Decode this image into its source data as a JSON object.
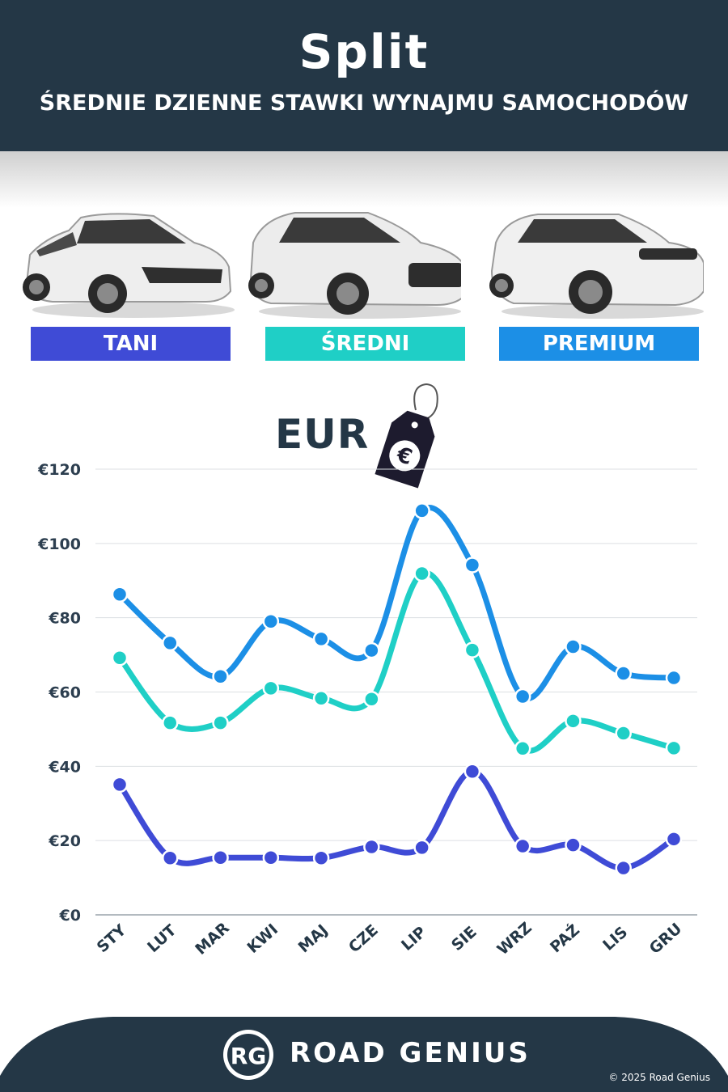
{
  "header": {
    "title": "Split",
    "subtitle": "ŚREDNIE DZIENNE STAWKI WYNAJMU SAMOCHODÓW"
  },
  "categories": [
    {
      "label": "TANI",
      "color": "#3f4bd6"
    },
    {
      "label": "ŚREDNI",
      "color": "#1fcfc6"
    },
    {
      "label": "PREMIUM",
      "color": "#1c8fe6"
    }
  ],
  "currency_label": "EUR",
  "tag_symbol": "€",
  "chart_data": {
    "type": "line",
    "categories": [
      "STY",
      "LUT",
      "MAR",
      "KWI",
      "MAJ",
      "CZE",
      "LIP",
      "SIE",
      "WRZ",
      "PAŹ",
      "LIS",
      "GRU"
    ],
    "series": [
      {
        "name": "PREMIUM",
        "color": "#1c8fe6",
        "values": [
          86.3,
          73.2,
          64.2,
          79.0,
          74.3,
          71.2,
          108.8,
          94.2,
          58.8,
          72.2,
          65.0,
          63.8
        ]
      },
      {
        "name": "ŚREDNI",
        "color": "#1fcfc6",
        "values": [
          69.2,
          51.7,
          51.7,
          61.0,
          58.3,
          58.1,
          91.9,
          71.3,
          44.8,
          52.2,
          48.9,
          44.9
        ]
      },
      {
        "name": "TANI",
        "color": "#3f4bd6",
        "values": [
          35.1,
          15.3,
          15.4,
          15.4,
          15.3,
          18.3,
          18.1,
          38.6,
          18.5,
          18.8,
          12.6,
          20.4
        ]
      }
    ],
    "yticks": [
      "€0",
      "€20",
      "€40",
      "€60",
      "€80",
      "€100",
      "€120"
    ],
    "ylim": [
      0,
      120
    ],
    "grid": true
  },
  "footer": {
    "logo_text": "RG",
    "brand": "ROAD GENIUS",
    "copyright": "© 2025 Road Genius"
  }
}
